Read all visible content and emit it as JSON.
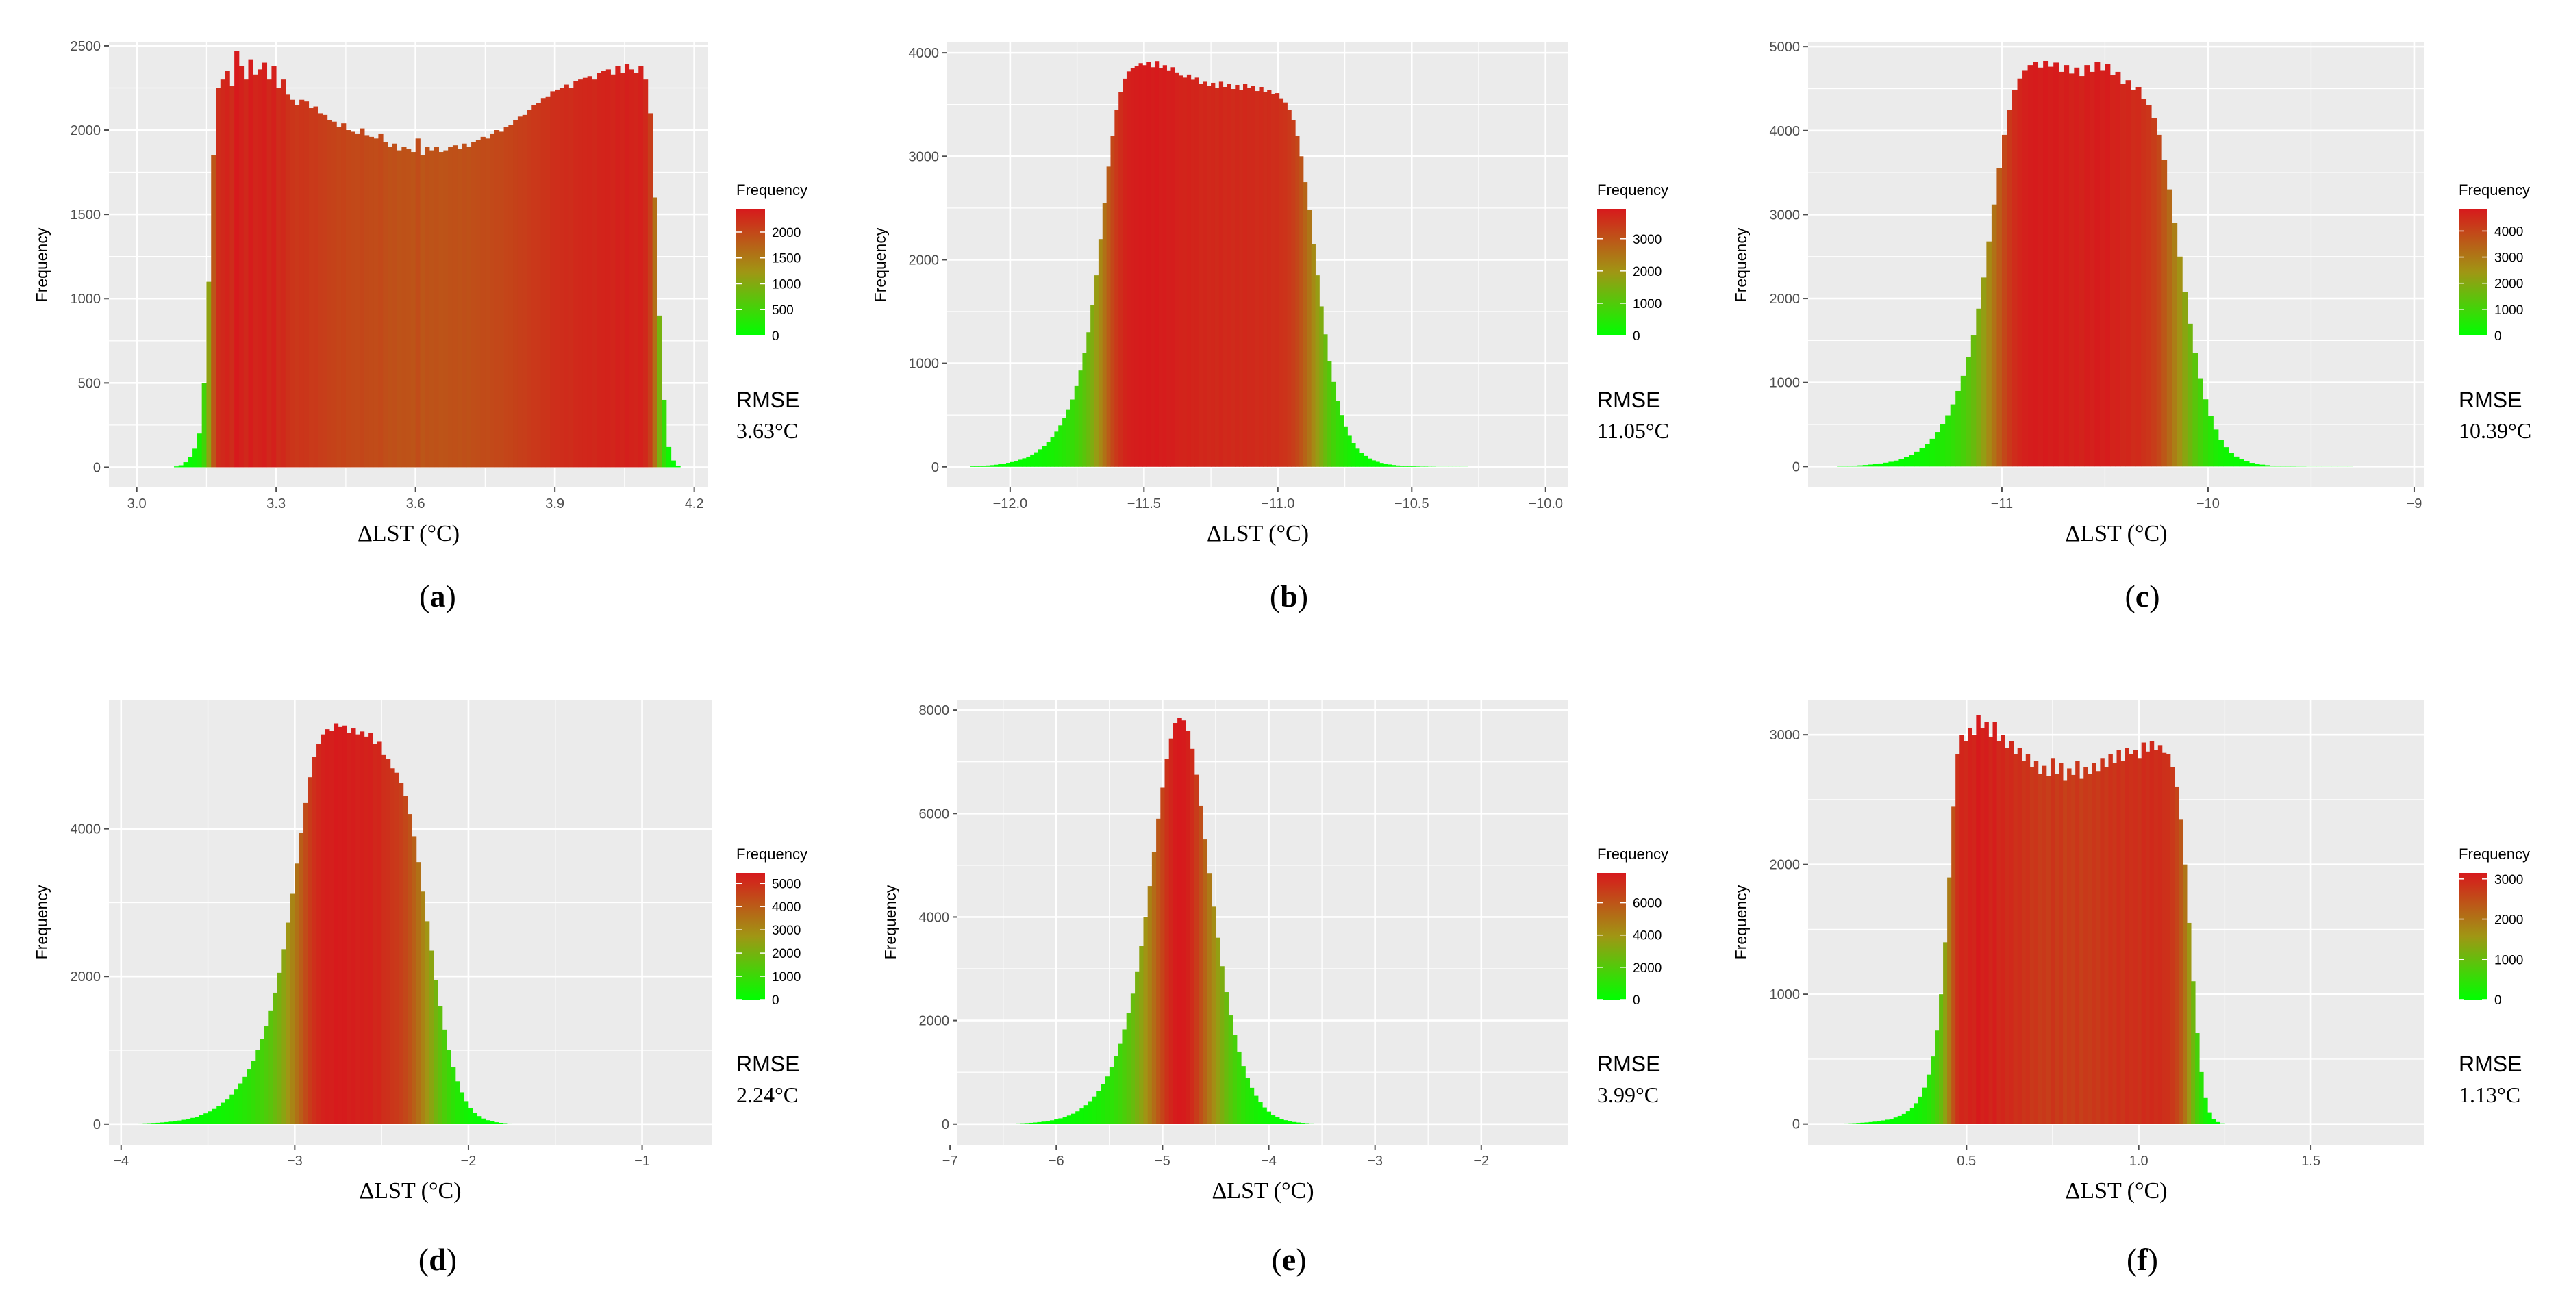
{
  "figure": {
    "axis_tick_color": "#4d4d4d",
    "panel_background": "#ebebeb",
    "grid_color": "#ffffff",
    "fill_low": "#00ff00",
    "fill_high": "#d7191c"
  },
  "chart_data": [
    {
      "panel": "a",
      "type": "bar",
      "caption_label": "a",
      "xlabel": "ΔLST (°C)",
      "ylabel": "Frequency",
      "legend_title": "Frequency",
      "legend_ticks": [
        "2000",
        "1500",
        "1000",
        "500",
        "0"
      ],
      "legend_tick_values": [
        2000,
        1500,
        1000,
        500,
        0
      ],
      "legend_max": 2450,
      "rmse_label": "RMSE",
      "rmse_value": "3.63°C",
      "x_ticks": [
        "3.0",
        "3.3",
        "3.6",
        "3.9",
        "4.2"
      ],
      "x_tick_values": [
        3.0,
        3.3,
        3.6,
        3.9,
        4.2
      ],
      "y_ticks": [
        "0",
        "500",
        "1000",
        "1500",
        "2000",
        "2500"
      ],
      "y_tick_values": [
        0,
        500,
        1000,
        1500,
        2000,
        2500
      ],
      "xlim": [
        2.94,
        4.23
      ],
      "ylim": [
        -120,
        2520
      ],
      "bin_start": 3.0,
      "bin_width": 0.01,
      "values": [
        0,
        0,
        0,
        0,
        0,
        0,
        0,
        0,
        5,
        12,
        30,
        60,
        110,
        200,
        500,
        1100,
        1850,
        2250,
        2300,
        2350,
        2260,
        2470,
        2380,
        2300,
        2420,
        2330,
        2360,
        2400,
        2300,
        2380,
        2250,
        2300,
        2210,
        2180,
        2150,
        2180,
        2170,
        2130,
        2140,
        2100,
        2090,
        2060,
        2050,
        2020,
        2040,
        2000,
        1990,
        1980,
        2010,
        1970,
        1960,
        1950,
        1980,
        1930,
        1900,
        1920,
        1880,
        1900,
        1890,
        1870,
        1950,
        1850,
        1900,
        1880,
        1900,
        1870,
        1880,
        1900,
        1910,
        1890,
        1920,
        1900,
        1930,
        1940,
        1960,
        1950,
        1980,
        2000,
        1990,
        2020,
        2030,
        2060,
        2080,
        2090,
        2120,
        2150,
        2160,
        2190,
        2200,
        2230,
        2240,
        2250,
        2270,
        2250,
        2290,
        2300,
        2310,
        2320,
        2300,
        2340,
        2350,
        2360,
        2330,
        2380,
        2340,
        2390,
        2360,
        2340,
        2380,
        2300,
        2100,
        1600,
        900,
        400,
        120,
        40,
        10,
        0
      ]
    },
    {
      "panel": "b",
      "type": "bar",
      "caption_label": "b",
      "xlabel": "ΔLST (°C)",
      "ylabel": "Frequency",
      "legend_title": "Frequency",
      "legend_ticks": [
        "3000",
        "2000",
        "1000",
        "0"
      ],
      "legend_tick_values": [
        3000,
        2000,
        1000,
        0
      ],
      "legend_max": 3930,
      "rmse_label": "RMSE",
      "rmse_value": "11.05°C",
      "x_ticks": [
        "−12.0",
        "−11.5",
        "−11.0",
        "−10.5",
        "−10.0"
      ],
      "x_tick_values": [
        -12.0,
        -11.5,
        -11.0,
        -10.5,
        -10.0
      ],
      "y_ticks": [
        "0",
        "1000",
        "2000",
        "3000",
        "4000"
      ],
      "y_tick_values": [
        0,
        1000,
        2000,
        3000,
        4000
      ],
      "xlim": [
        -12.235,
        -9.915
      ],
      "ylim": [
        -200,
        4100
      ],
      "bin_start": -12.15,
      "bin_width": 0.015,
      "values": [
        5,
        6,
        8,
        10,
        13,
        16,
        20,
        25,
        30,
        38,
        46,
        56,
        68,
        82,
        98,
        118,
        140,
        168,
        200,
        240,
        285,
        340,
        400,
        470,
        550,
        650,
        780,
        930,
        1100,
        1300,
        1560,
        1850,
        2200,
        2550,
        2900,
        3200,
        3450,
        3620,
        3750,
        3820,
        3850,
        3870,
        3900,
        3880,
        3910,
        3860,
        3920,
        3850,
        3880,
        3830,
        3860,
        3810,
        3780,
        3760,
        3790,
        3740,
        3760,
        3700,
        3720,
        3680,
        3710,
        3660,
        3720,
        3670,
        3700,
        3650,
        3690,
        3640,
        3700,
        3660,
        3680,
        3630,
        3670,
        3620,
        3640,
        3600,
        3610,
        3560,
        3520,
        3450,
        3350,
        3200,
        3000,
        2750,
        2480,
        2150,
        1850,
        1550,
        1280,
        1020,
        820,
        640,
        500,
        390,
        300,
        230,
        175,
        135,
        105,
        80,
        62,
        48,
        37,
        28,
        22,
        17,
        13,
        10,
        8,
        6,
        5,
        4,
        3,
        3,
        2,
        2,
        1,
        1,
        1,
        1,
        1,
        1,
        1,
        1,
        0
      ]
    },
    {
      "panel": "c",
      "type": "bar",
      "caption_label": "c",
      "xlabel": "ΔLST (°C)",
      "ylabel": "Frequency",
      "legend_title": "Frequency",
      "legend_ticks": [
        "4000",
        "3000",
        "2000",
        "1000",
        "0"
      ],
      "legend_tick_values": [
        4000,
        3000,
        2000,
        1000,
        0
      ],
      "legend_max": 4850,
      "rmse_label": "RMSE",
      "rmse_value": "10.39°C",
      "x_ticks": [
        "−11",
        "−10",
        "−9"
      ],
      "x_tick_values": [
        -11,
        -10,
        -9
      ],
      "y_ticks": [
        "0",
        "1000",
        "2000",
        "3000",
        "4000",
        "5000"
      ],
      "y_tick_values": [
        0,
        1000,
        2000,
        3000,
        4000,
        5000
      ],
      "xlim": [
        -11.94,
        -8.95
      ],
      "ylim": [
        -250,
        5050
      ],
      "bin_start": -11.8,
      "bin_width": 0.025,
      "values": [
        4,
        6,
        8,
        11,
        14,
        18,
        23,
        29,
        36,
        45,
        56,
        70,
        88,
        110,
        140,
        175,
        215,
        265,
        330,
        410,
        500,
        610,
        740,
        900,
        1080,
        1300,
        1560,
        1880,
        2250,
        2680,
        3120,
        3550,
        3950,
        4250,
        4480,
        4620,
        4720,
        4780,
        4820,
        4750,
        4830,
        4760,
        4810,
        4700,
        4780,
        4680,
        4750,
        4650,
        4780,
        4700,
        4820,
        4720,
        4790,
        4660,
        4700,
        4560,
        4600,
        4480,
        4520,
        4380,
        4300,
        4150,
        3950,
        3650,
        3300,
        2900,
        2500,
        2080,
        1700,
        1350,
        1050,
        800,
        600,
        440,
        320,
        230,
        165,
        118,
        84,
        60,
        43,
        31,
        22,
        16,
        11,
        8,
        6,
        4,
        3,
        2,
        2,
        1,
        1,
        1,
        1,
        1,
        1,
        1,
        1,
        1,
        0
      ]
    },
    {
      "panel": "d",
      "type": "bar",
      "caption_label": "d",
      "xlabel": "ΔLST (°C)",
      "ylabel": "Frequency",
      "legend_title": "Frequency",
      "legend_ticks": [
        "5000",
        "4000",
        "3000",
        "2000",
        "1000",
        "0"
      ],
      "legend_tick_values": [
        5000,
        4000,
        3000,
        2000,
        1000,
        0
      ],
      "legend_max": 5450,
      "rmse_label": "RMSE",
      "rmse_value": "2.24°C",
      "x_ticks": [
        "−4",
        "−3",
        "−2",
        "−1"
      ],
      "x_tick_values": [
        -4,
        -3,
        -2,
        -1
      ],
      "y_ticks": [
        "0",
        "2000",
        "4000"
      ],
      "y_tick_values": [
        0,
        2000,
        4000
      ],
      "xlim": [
        -4.07,
        -0.6
      ],
      "ylim": [
        -280,
        5750
      ],
      "bin_start": -3.9,
      "bin_width": 0.025,
      "values": [
        8,
        10,
        12,
        15,
        18,
        22,
        27,
        33,
        40,
        48,
        58,
        70,
        84,
        100,
        120,
        145,
        172,
        205,
        245,
        290,
        340,
        400,
        470,
        550,
        640,
        740,
        860,
        1000,
        1150,
        1330,
        1540,
        1780,
        2050,
        2370,
        2730,
        3120,
        3530,
        3950,
        4350,
        4700,
        4980,
        5150,
        5280,
        5350,
        5330,
        5430,
        5380,
        5400,
        5300,
        5360,
        5280,
        5320,
        5250,
        5300,
        5150,
        5180,
        5000,
        4950,
        4820,
        4760,
        4620,
        4450,
        4200,
        3900,
        3550,
        3150,
        2750,
        2350,
        1950,
        1600,
        1280,
        1000,
        770,
        580,
        430,
        310,
        220,
        155,
        108,
        75,
        52,
        36,
        25,
        17,
        12,
        8,
        5,
        4,
        3,
        2,
        1,
        1,
        1,
        0
      ]
    },
    {
      "panel": "e",
      "type": "bar",
      "caption_label": "e",
      "xlabel": "ΔLST (°C)",
      "ylabel": "Frequency",
      "legend_title": "Frequency",
      "legend_ticks": [
        "6000",
        "4000",
        "2000",
        "0"
      ],
      "legend_tick_values": [
        6000,
        4000,
        2000,
        0
      ],
      "legend_max": 7850,
      "rmse_label": "RMSE",
      "rmse_value": "3.99°C",
      "x_ticks": [
        "−7",
        "−6",
        "−5",
        "−4",
        "−3",
        "−2"
      ],
      "x_tick_values": [
        -7,
        -6,
        -5,
        -4,
        -3,
        -2
      ],
      "y_ticks": [
        "0",
        "2000",
        "4000",
        "6000",
        "8000"
      ],
      "y_tick_values": [
        0,
        2000,
        4000,
        6000,
        8000
      ],
      "xlim": [
        -6.93,
        -1.18
      ],
      "ylim": [
        -400,
        8200
      ],
      "bin_start": -6.5,
      "bin_width": 0.04,
      "values": [
        5,
        7,
        9,
        12,
        15,
        19,
        24,
        30,
        38,
        47,
        58,
        72,
        89,
        110,
        135,
        165,
        200,
        245,
        300,
        365,
        440,
        530,
        640,
        770,
        920,
        1100,
        1310,
        1550,
        1830,
        2150,
        2520,
        2950,
        3450,
        4000,
        4600,
        5250,
        5900,
        6500,
        7050,
        7450,
        7750,
        7850,
        7800,
        7600,
        7250,
        6750,
        6150,
        5500,
        4850,
        4200,
        3600,
        3050,
        2550,
        2100,
        1720,
        1400,
        1120,
        890,
        700,
        545,
        420,
        320,
        240,
        180,
        135,
        100,
        74,
        55,
        40,
        30,
        22,
        16,
        12,
        9,
        7,
        5,
        4,
        3,
        2,
        2,
        1,
        1,
        1,
        1,
        0
      ]
    },
    {
      "panel": "f",
      "type": "bar",
      "caption_label": "f",
      "xlabel": "ΔLST (°C)",
      "ylabel": "Frequency",
      "legend_title": "Frequency",
      "legend_ticks": [
        "3000",
        "2000",
        "1000",
        "0"
      ],
      "legend_tick_values": [
        3000,
        2000,
        1000,
        0
      ],
      "legend_max": 3150,
      "rmse_label": "RMSE",
      "rmse_value": "1.13°C",
      "x_ticks": [
        "0.5",
        "1.0",
        "1.5"
      ],
      "x_tick_values": [
        0.5,
        1.0,
        1.5
      ],
      "y_ticks": [
        "0",
        "1000",
        "2000",
        "3000"
      ],
      "y_tick_values": [
        0,
        1000,
        2000,
        3000
      ],
      "xlim": [
        0.04,
        1.83
      ],
      "ylim": [
        -160,
        3270
      ],
      "bin_start": 0.12,
      "bin_width": 0.012,
      "values": [
        2,
        3,
        4,
        5,
        6,
        8,
        10,
        12,
        15,
        18,
        22,
        27,
        33,
        40,
        50,
        62,
        78,
        98,
        125,
        160,
        210,
        280,
        380,
        520,
        720,
        1000,
        1400,
        1900,
        2450,
        2850,
        3000,
        2950,
        3050,
        3000,
        3150,
        3050,
        3100,
        2980,
        3100,
        2950,
        3000,
        2900,
        2950,
        2850,
        2900,
        2800,
        2850,
        2750,
        2800,
        2700,
        2760,
        2680,
        2820,
        2700,
        2780,
        2650,
        2740,
        2690,
        2800,
        2660,
        2750,
        2700,
        2780,
        2720,
        2820,
        2750,
        2850,
        2780,
        2880,
        2800,
        2900,
        2850,
        2880,
        2820,
        2940,
        2870,
        2950,
        2880,
        2920,
        2860,
        2850,
        2750,
        2600,
        2350,
        2000,
        1550,
        1100,
        700,
        400,
        200,
        90,
        40,
        15,
        5,
        0
      ]
    }
  ]
}
